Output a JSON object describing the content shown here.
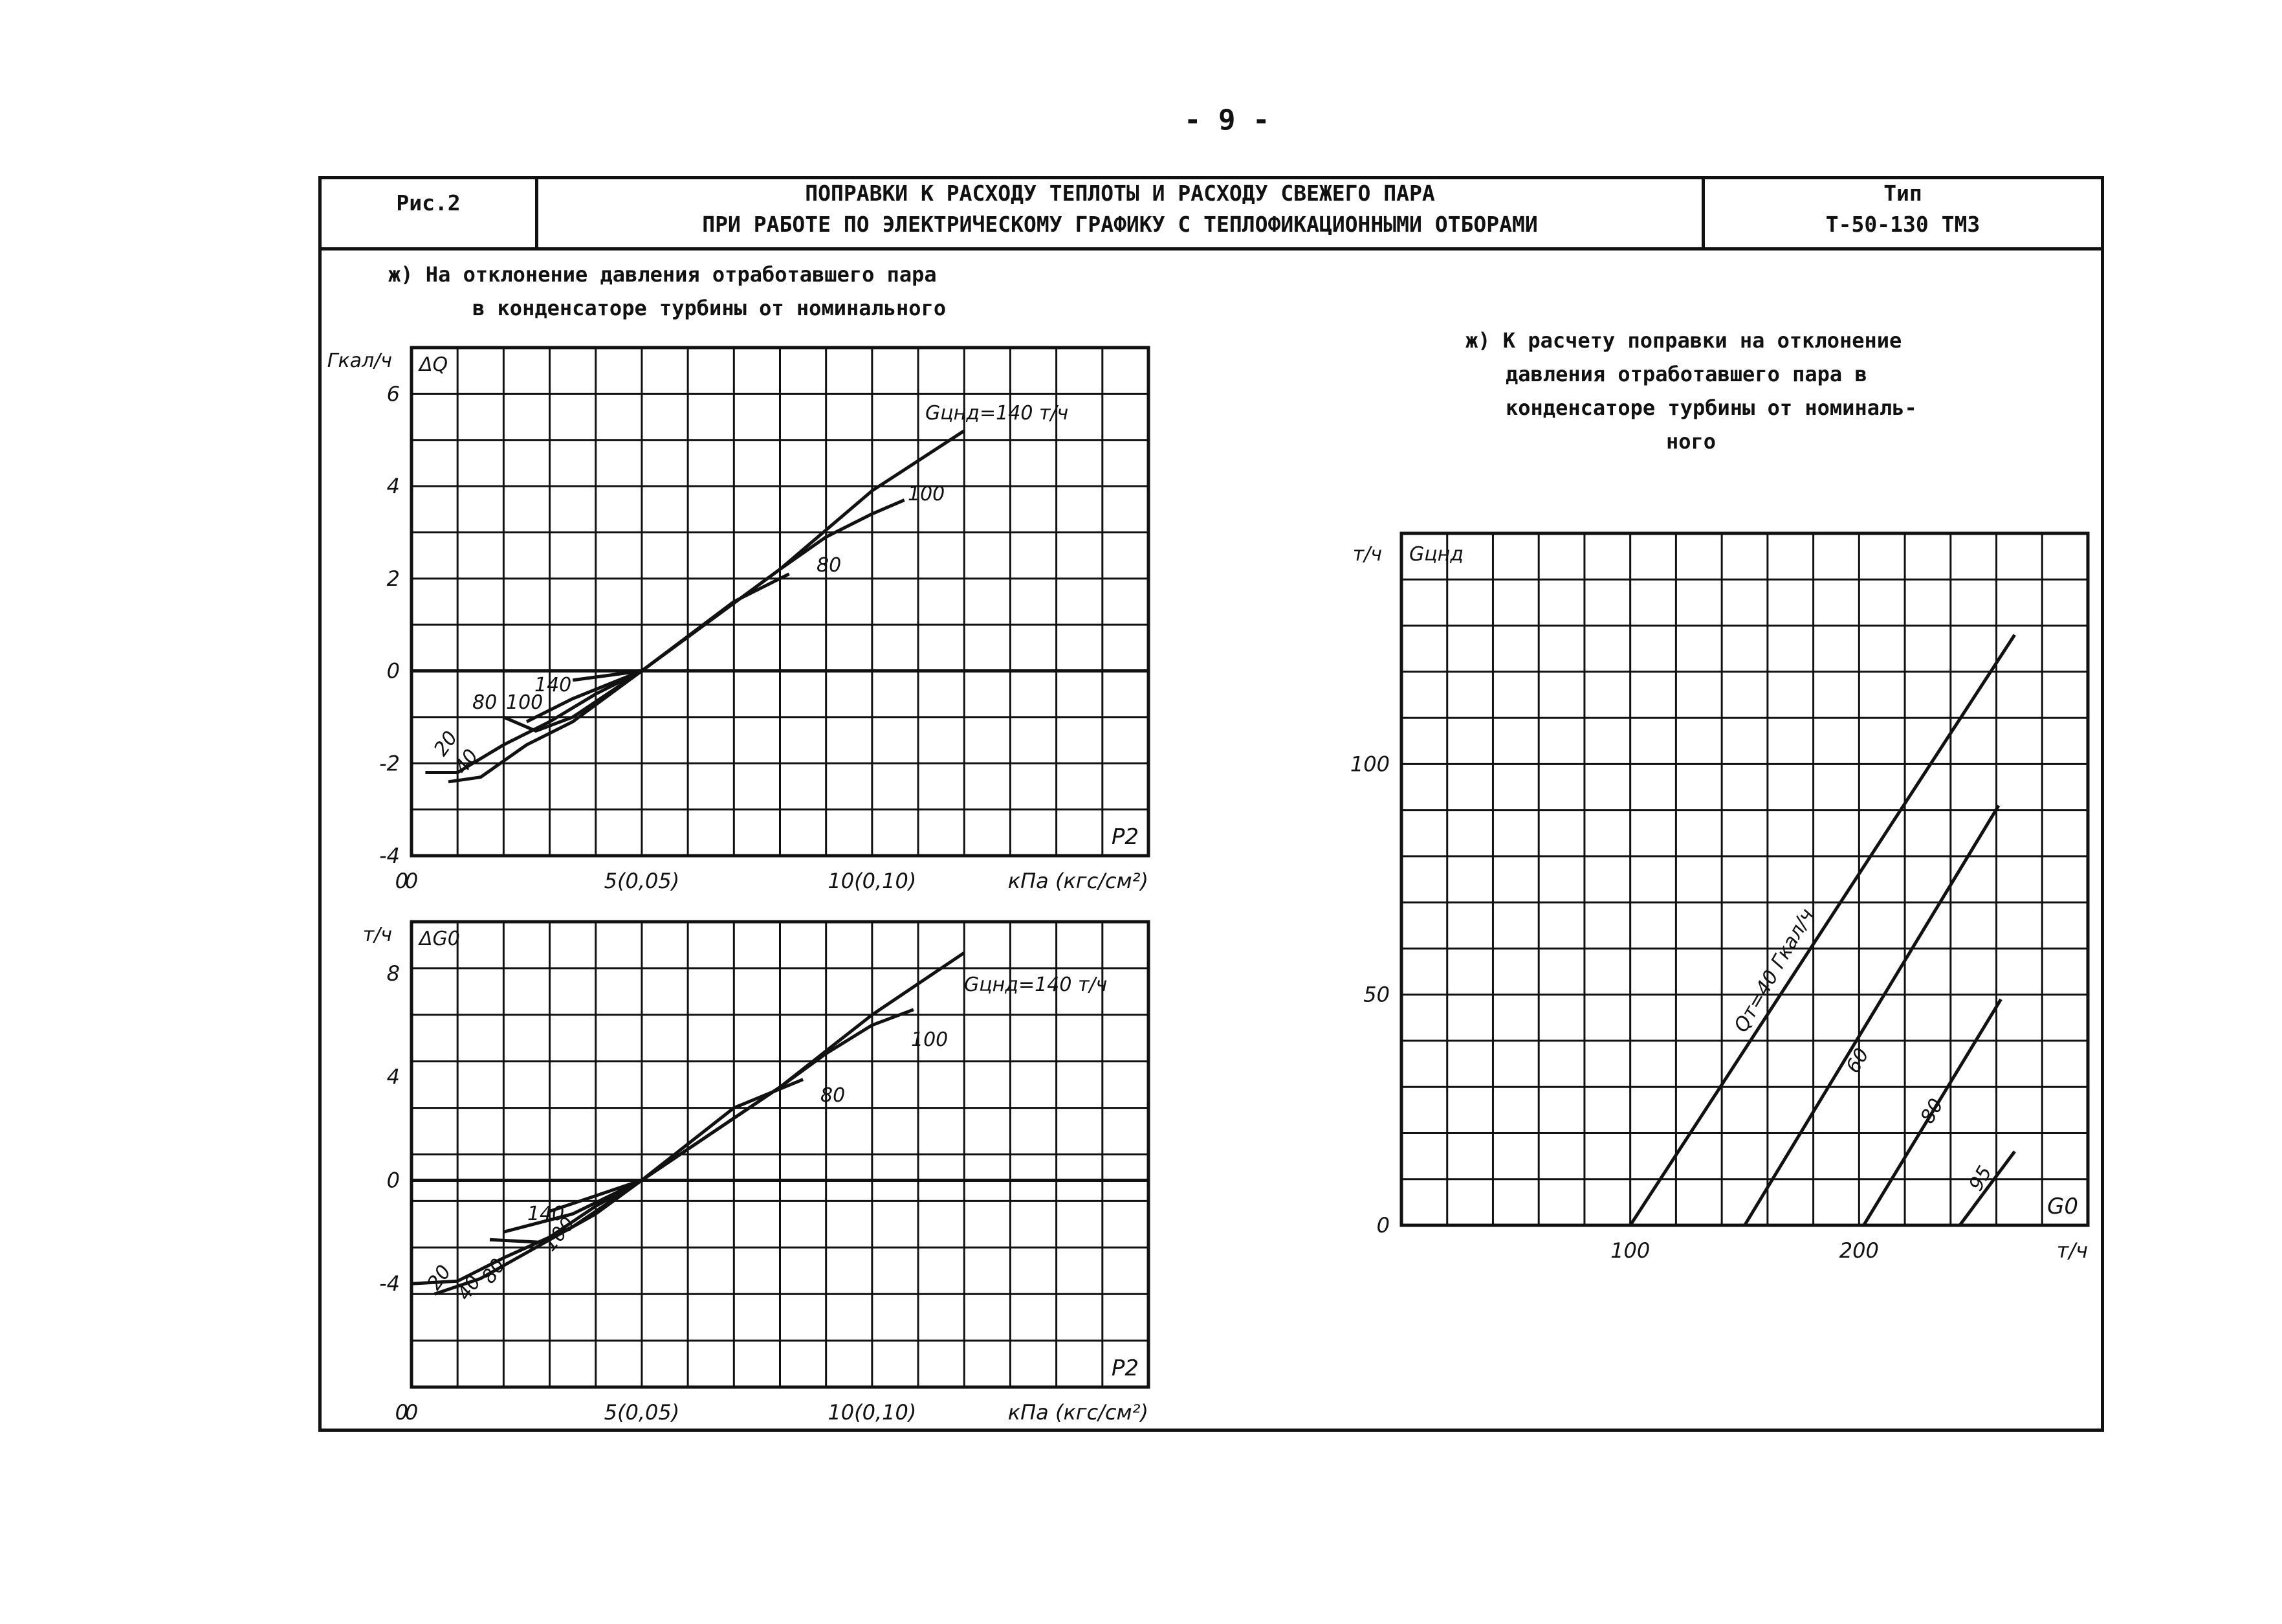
{
  "page_number": "- 9 -",
  "header": {
    "fig": "Рис.2",
    "title_line1": "ПОПРАВКИ К РАСХОДУ ТЕПЛОТЫ И РАСХОДУ СВЕЖЕГО ПАРА",
    "title_line2": "ПРИ РАБОТЕ ПО ЭЛЕКТРИЧЕСКОМУ ГРАФИКУ С ТЕПЛОФИКАЦИОННЫМИ ОТБОРАМИ",
    "type_label": "Тип",
    "type_value": "Т-50-130 ТМЗ"
  },
  "left_heading": {
    "line1": "ж) На отклонение давления отработавшего пара",
    "line2": "в конденсаторе турбины от номинального"
  },
  "right_heading": {
    "line1": "ж) К расчету поправки на отклонение",
    "line2": "давления отработавшего пара в",
    "line3": "конденсаторе турбины от номиналь-",
    "line4": "ного"
  },
  "colors": {
    "ink": "#111111",
    "paper": "#ffffff"
  },
  "chart_data": [
    {
      "type": "line",
      "yunit": "Гкал/ч",
      "ylabel": "ΔQ",
      "xlabel": "P2",
      "xunit": "кПа (кгс/см²)",
      "xlim": [
        0,
        16
      ],
      "ylim": [
        -4,
        7
      ],
      "yticks": [
        -4,
        -2,
        0,
        2,
        4,
        6
      ],
      "xticks": [
        {
          "x": 0,
          "label": "0"
        },
        {
          "x": 5,
          "label": "5(0,05)"
        },
        {
          "x": 10,
          "label": "10(0,10)"
        }
      ],
      "grid": true,
      "series": [
        {
          "name": "Gцнд=140 т/ч",
          "points": [
            [
              3.5,
              -0.2
            ],
            [
              5,
              0
            ],
            [
              8,
              2.2
            ],
            [
              10,
              3.9
            ],
            [
              12,
              5.2
            ]
          ]
        },
        {
          "name": "100",
          "points": [
            [
              2.5,
              -1.1
            ],
            [
              3.5,
              -0.6
            ],
            [
              5,
              0
            ],
            [
              8,
              2.2
            ],
            [
              9,
              2.9
            ],
            [
              10,
              3.4
            ],
            [
              10.7,
              3.7
            ]
          ]
        },
        {
          "name": "80",
          "points": [
            [
              2,
              -1.0
            ],
            [
              2.7,
              -1.3
            ],
            [
              3.5,
              -1.0
            ],
            [
              5,
              0
            ],
            [
              7,
              1.5
            ],
            [
              8.2,
              2.1
            ]
          ]
        },
        {
          "name": "40",
          "points": [
            [
              0.8,
              -2.4
            ],
            [
              1.5,
              -2.3
            ],
            [
              2.5,
              -1.6
            ],
            [
              3.5,
              -1.1
            ],
            [
              5,
              0
            ]
          ]
        },
        {
          "name": "20",
          "points": [
            [
              0.3,
              -2.2
            ],
            [
              1,
              -2.2
            ],
            [
              2,
              -1.6
            ],
            [
              3,
              -1.1
            ],
            [
              4,
              -0.5
            ],
            [
              5,
              0
            ]
          ]
        }
      ],
      "labels": [
        {
          "text": "Gцнд=140 т/ч"
        },
        {
          "text": "100"
        },
        {
          "text": "80"
        },
        {
          "text": "140"
        },
        {
          "text": "100"
        },
        {
          "text": "80"
        },
        {
          "text": "40"
        },
        {
          "text": "20"
        }
      ]
    },
    {
      "type": "line",
      "yunit": "т/ч",
      "ylabel": "ΔG0",
      "xlabel": "P2",
      "xunit": "кПа (кгс/см²)",
      "xlim": [
        0,
        16
      ],
      "ylim": [
        -8,
        10
      ],
      "yticks": [
        -4,
        0,
        4,
        8
      ],
      "xticks": [
        {
          "x": 0,
          "label": "0"
        },
        {
          "x": 5,
          "label": "5(0,05)"
        },
        {
          "x": 10,
          "label": "10(0,10)"
        }
      ],
      "grid": true,
      "series": [
        {
          "name": "Gцнд=140 т/ч",
          "points": [
            [
              3,
              -1.2
            ],
            [
              5,
              0
            ],
            [
              8,
              3.6
            ],
            [
              10,
              6.4
            ],
            [
              12,
              8.8
            ]
          ]
        },
        {
          "name": "100",
          "points": [
            [
              2,
              -2.0
            ],
            [
              3.5,
              -1.3
            ],
            [
              5,
              0
            ],
            [
              8,
              3.6
            ],
            [
              9,
              4.9
            ],
            [
              10,
              6.0
            ],
            [
              10.9,
              6.6
            ]
          ]
        },
        {
          "name": "80",
          "points": [
            [
              1.7,
              -2.3
            ],
            [
              2.8,
              -2.4
            ],
            [
              3.5,
              -1.8
            ],
            [
              5,
              0
            ],
            [
              7,
              2.8
            ],
            [
              8.5,
              3.9
            ]
          ]
        },
        {
          "name": "40",
          "points": [
            [
              0.5,
              -4.4
            ],
            [
              1.5,
              -3.8
            ],
            [
              2.7,
              -2.6
            ],
            [
              4,
              -1.3
            ],
            [
              5,
              0
            ]
          ]
        },
        {
          "name": "20",
          "points": [
            [
              0,
              -4.0
            ],
            [
              1,
              -3.9
            ],
            [
              2,
              -3.0
            ],
            [
              3,
              -2.2
            ],
            [
              4,
              -1.0
            ],
            [
              5,
              0
            ]
          ]
        }
      ],
      "labels": [
        {
          "text": "Gцнд=140 т/ч"
        },
        {
          "text": "100"
        },
        {
          "text": "80"
        },
        {
          "text": "140"
        },
        {
          "text": "100"
        },
        {
          "text": "80"
        },
        {
          "text": "40"
        },
        {
          "text": "20"
        }
      ]
    },
    {
      "type": "line",
      "yunit": "т/ч",
      "ylabel": "Gцнд",
      "xlabel": "G0",
      "xunit": "т/ч",
      "xlim": [
        0,
        300
      ],
      "ylim": [
        0,
        150
      ],
      "yticks": [
        0,
        50,
        100
      ],
      "xticks": [
        {
          "x": 100,
          "label": "100"
        },
        {
          "x": 200,
          "label": "200"
        }
      ],
      "grid": true,
      "series": [
        {
          "name": "Qт=40 Гкал/ч",
          "points": [
            [
              100,
              0
            ],
            [
              268,
              128
            ]
          ]
        },
        {
          "name": "60",
          "points": [
            [
              150,
              0
            ],
            [
              261,
              91
            ]
          ]
        },
        {
          "name": "80",
          "points": [
            [
              202,
              0
            ],
            [
              262,
              49
            ]
          ]
        },
        {
          "name": "95",
          "points": [
            [
              244,
              0
            ],
            [
              268,
              16
            ]
          ]
        }
      ],
      "labels": [
        {
          "text": "Qт=40 Гкал/ч"
        },
        {
          "text": "60"
        },
        {
          "text": "80"
        },
        {
          "text": "95"
        }
      ]
    }
  ]
}
